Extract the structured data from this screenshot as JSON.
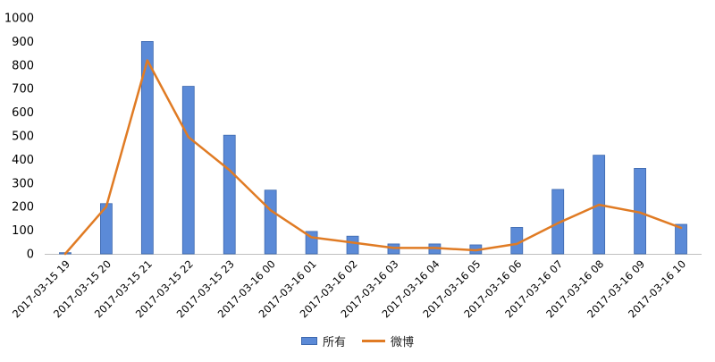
{
  "chart_data": {
    "type": "bar",
    "categories": [
      "2017-03-15 19",
      "2017-03-15 20",
      "2017-03-15 21",
      "2017-03-15 22",
      "2017-03-15 23",
      "2017-03-16 00",
      "2017-03-16 01",
      "2017-03-16 02",
      "2017-03-16 03",
      "2017-03-16 04",
      "2017-03-16 05",
      "2017-03-16 06",
      "2017-03-16 07",
      "2017-03-16 08",
      "2017-03-16 09",
      "2017-03-16 10"
    ],
    "series": [
      {
        "name": "所有",
        "type": "bar",
        "color": "#5B8AD7",
        "values": [
          5,
          213,
          900,
          710,
          503,
          270,
          95,
          75,
          42,
          42,
          38,
          112,
          273,
          418,
          362,
          125
        ]
      },
      {
        "name": "微博",
        "type": "line",
        "color": "#E07B24",
        "values": [
          0,
          200,
          820,
          495,
          355,
          185,
          70,
          48,
          25,
          25,
          15,
          42,
          130,
          208,
          175,
          110
        ]
      }
    ],
    "yticks": [
      "0",
      "100",
      "200",
      "300",
      "400",
      "500",
      "600",
      "700",
      "800",
      "900",
      "1000"
    ],
    "ylim": [
      0,
      1000
    ],
    "grid": false,
    "legend": "bottom"
  }
}
